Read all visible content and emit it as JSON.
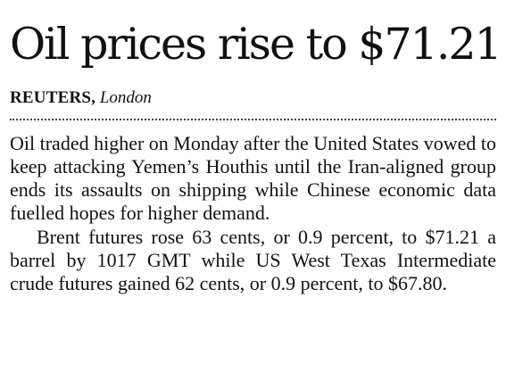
{
  "article": {
    "headline": "Oil prices rise to $71.21",
    "byline": {
      "agency": "REUTERS,",
      "location": "London"
    },
    "paragraphs": [
      "Oil traded higher on Monday after the United States vowed to keep attacking Yemen’s Houthis until the Iran-aligned group ends its assaults on shipping while Chinese economic data fuelled hopes for higher demand.",
      "Brent futures rose 63 cents, or 0.9 percent, to $71.21 a barrel by 1017 GMT while US West Texas Intermediate crude futures gained 62 cents, or 0.9 percent, to $67.80."
    ]
  }
}
